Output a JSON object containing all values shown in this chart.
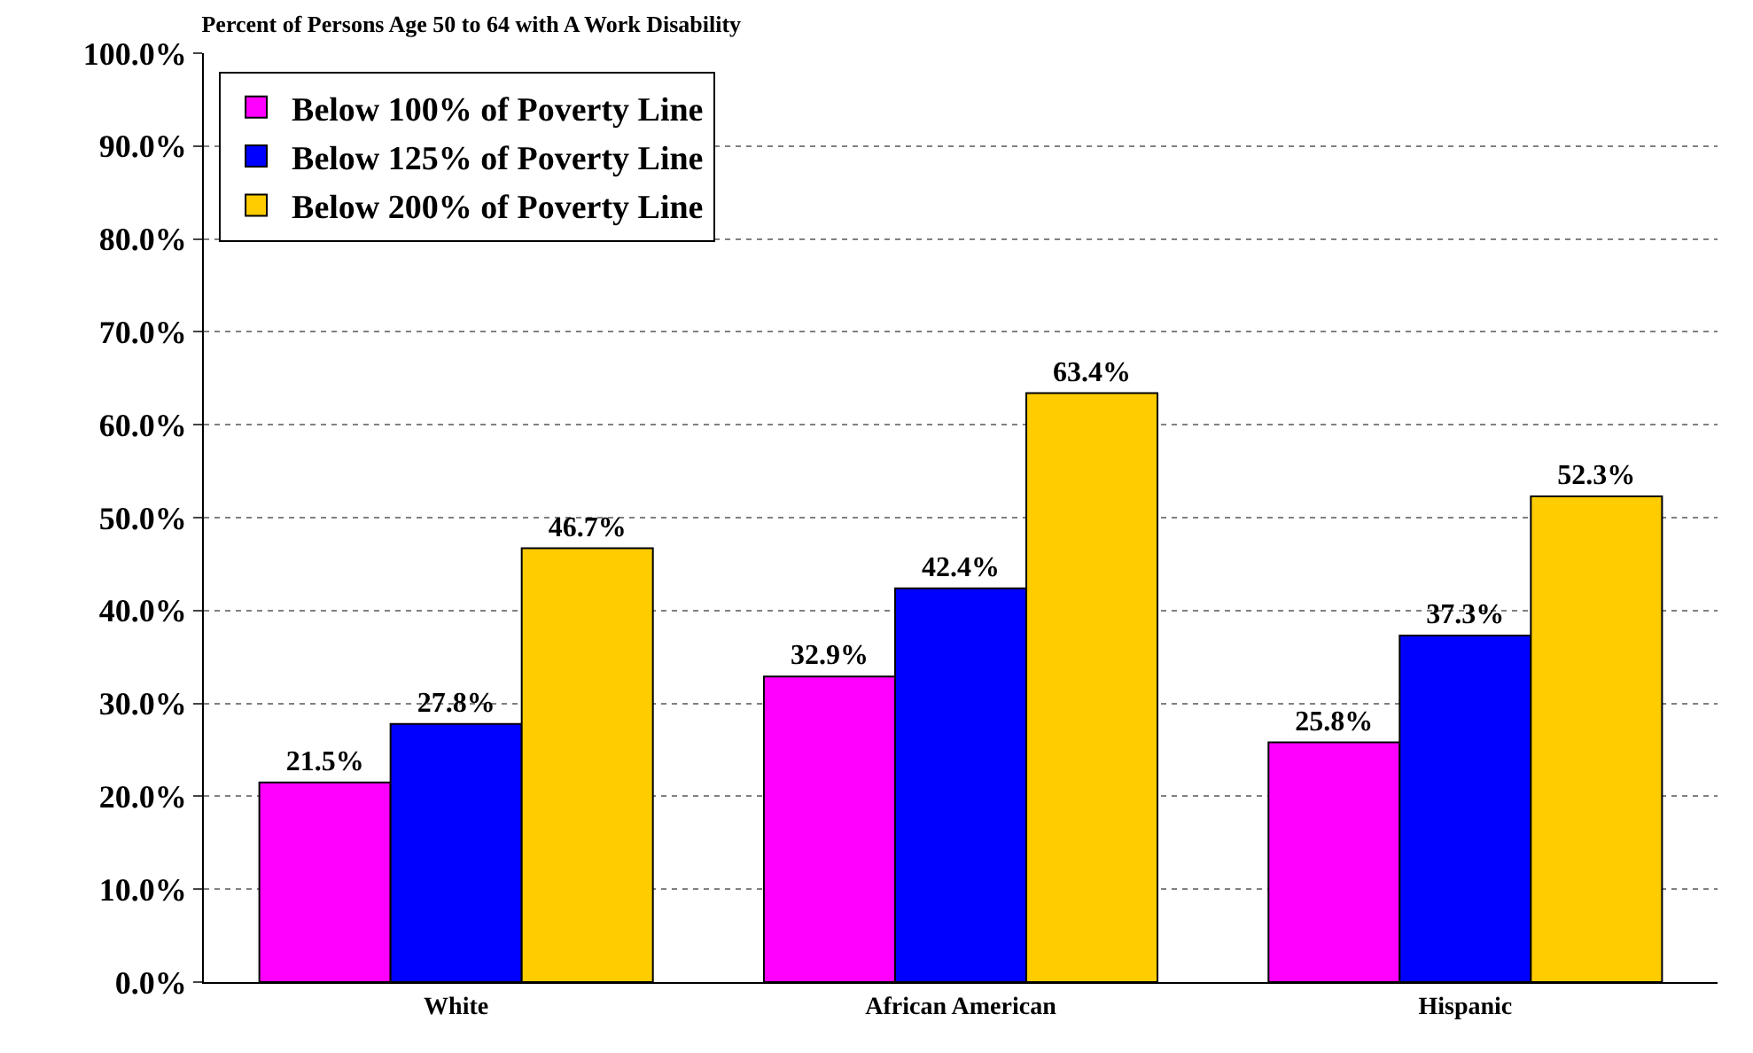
{
  "chart_data": {
    "type": "bar",
    "title": "Percent of Persons Age 50 to 64 with A Work Disability",
    "categories": [
      "White",
      "African American",
      "Hispanic"
    ],
    "series": [
      {
        "name": "Below 100% of Poverty Line",
        "color": "#ff00ff",
        "values": [
          21.5,
          32.9,
          25.8
        ],
        "value_labels": [
          "21.5%",
          "32.9%",
          "25.8%"
        ]
      },
      {
        "name": "Below 125% of Poverty Line",
        "color": "#0000ff",
        "values": [
          27.8,
          42.4,
          37.3
        ],
        "value_labels": [
          "27.8%",
          "42.4%",
          "37.3%"
        ]
      },
      {
        "name": "Below 200% of Poverty Line",
        "color": "#ffcc00",
        "values": [
          46.7,
          63.4,
          52.3
        ],
        "value_labels": [
          "46.7%",
          "63.4%",
          "52.3%"
        ]
      }
    ],
    "ylim": [
      0,
      100
    ],
    "yticks": [
      {
        "value": 0,
        "label": "0.0%"
      },
      {
        "value": 10,
        "label": "10.0%"
      },
      {
        "value": 20,
        "label": "20.0%"
      },
      {
        "value": 30,
        "label": "30.0%"
      },
      {
        "value": 40,
        "label": "40.0%"
      },
      {
        "value": 50,
        "label": "50.0%"
      },
      {
        "value": 60,
        "label": "60.0%"
      },
      {
        "value": 70,
        "label": "70.0%"
      },
      {
        "value": 80,
        "label": "80.0%"
      },
      {
        "value": 90,
        "label": "90.0%"
      },
      {
        "value": 100,
        "label": "100.0%"
      }
    ],
    "grid": "y",
    "legend": "top left"
  }
}
